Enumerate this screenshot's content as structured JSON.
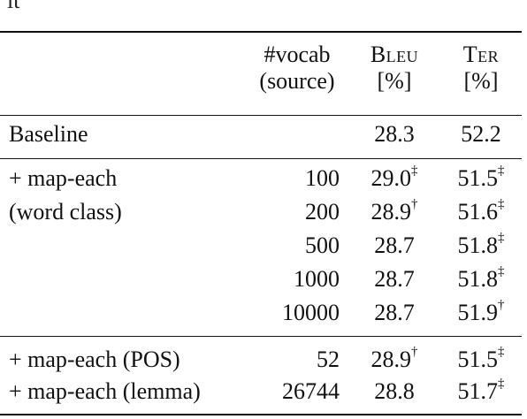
{
  "fragment": "ıt",
  "header": {
    "vocab_line1": "#vocab",
    "vocab_line2": "(source)",
    "bleu_line1": "Bleu",
    "bleu_line2": "[%]",
    "ter_line1": "Ter",
    "ter_line2": "[%]"
  },
  "rows": [
    {
      "label": "Baseline",
      "vocab": "",
      "bleu": "28.3",
      "bleu_mark": "",
      "ter": "52.2",
      "ter_mark": ""
    },
    {
      "label": "+ map-each",
      "vocab": "100",
      "bleu": "29.0",
      "bleu_mark": "‡",
      "ter": "51.5",
      "ter_mark": "‡"
    },
    {
      "label": "(word class)",
      "vocab": "200",
      "bleu": "28.9",
      "bleu_mark": "†",
      "ter": "51.6",
      "ter_mark": "‡"
    },
    {
      "label": "",
      "vocab": "500",
      "bleu": "28.7",
      "bleu_mark": "",
      "ter": "51.8",
      "ter_mark": "‡"
    },
    {
      "label": "",
      "vocab": "1000",
      "bleu": "28.7",
      "bleu_mark": "",
      "ter": "51.8",
      "ter_mark": "‡"
    },
    {
      "label": "",
      "vocab": "10000",
      "bleu": "28.7",
      "bleu_mark": "",
      "ter": "51.9",
      "ter_mark": "†"
    },
    {
      "label": "+ map-each (POS)",
      "vocab": "52",
      "bleu": "28.9",
      "bleu_mark": "†",
      "ter": "51.5",
      "ter_mark": "‡"
    },
    {
      "label": "+ map-each (lemma)",
      "vocab": "26744",
      "bleu": "28.8",
      "bleu_mark": "",
      "ter": "51.7",
      "ter_mark": "‡"
    }
  ]
}
